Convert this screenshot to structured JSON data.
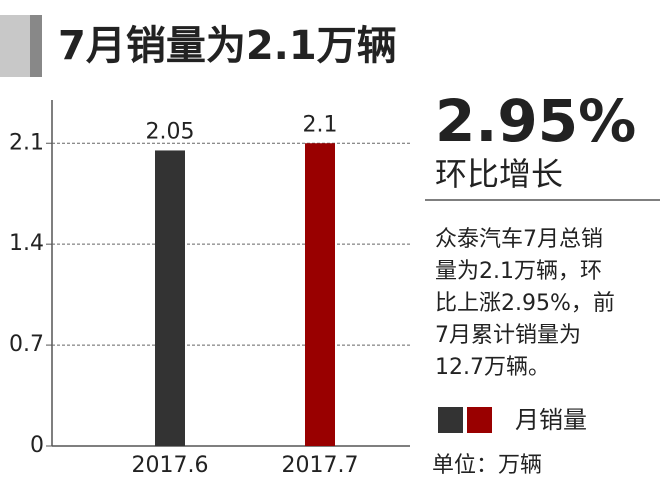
{
  "chart_data": {
    "type": "bar",
    "title": "7月销量为2.1万辆",
    "categories": [
      "2017.6",
      "2017.7"
    ],
    "series": [
      {
        "name": "月销量",
        "colors": [
          "#333333",
          "#990000"
        ],
        "values": [
          2.05,
          2.1
        ]
      }
    ],
    "ylim": [
      0,
      2.4
    ],
    "yticks": [
      0,
      0.7,
      1.4,
      2.1
    ],
    "grid": true,
    "highlight": {
      "value": "2.95%",
      "label": "环比增长"
    },
    "description": [
      "众泰汽车7月总销",
      "量为2.1万辆，环",
      "比上涨2.95%，前",
      "7月累计销量为",
      "12.7万辆。"
    ],
    "unit": "单位：万辆"
  }
}
